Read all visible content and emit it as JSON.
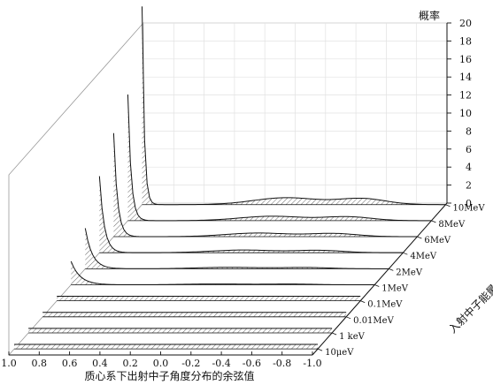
{
  "chart_data": {
    "type": "area",
    "title": "",
    "xlabel": "质心系下出射中子角度分布的余弦值",
    "ylabel": "概率",
    "zlabel": "入射中子能量",
    "xlim": [
      1.0,
      -1.0
    ],
    "ylim": [
      0,
      20
    ],
    "x_ticks": [
      "1.0",
      "0.8",
      "0.6",
      "0.4",
      "0.2",
      "0.0",
      "-0.2",
      "-0.4",
      "-0.6",
      "-0.8",
      "-1.0"
    ],
    "y_ticks": [
      "0",
      "2",
      "4",
      "6",
      "8",
      "10",
      "12",
      "14",
      "16",
      "18",
      "20"
    ],
    "series": [
      {
        "name": "10μeV",
        "shape": "flat",
        "peak": 0.5
      },
      {
        "name": "1 keV",
        "shape": "flat",
        "peak": 0.5
      },
      {
        "name": "0.01MeV",
        "shape": "flat",
        "peak": 0.5
      },
      {
        "name": "0.1MeV",
        "shape": "flat",
        "peak": 0.5
      },
      {
        "name": "1MeV",
        "shape": "forward",
        "peak": 2.6
      },
      {
        "name": "2MeV",
        "shape": "forward",
        "peak": 4.5
      },
      {
        "name": "4MeV",
        "shape": "forward",
        "peak": 8.5
      },
      {
        "name": "6MeV",
        "shape": "forward",
        "peak": 11.5
      },
      {
        "name": "8MeV",
        "shape": "forward",
        "peak": 14.0
      },
      {
        "name": "10MeV",
        "shape": "forward",
        "peak": 22.0
      }
    ],
    "grid": true,
    "legend": "none"
  }
}
